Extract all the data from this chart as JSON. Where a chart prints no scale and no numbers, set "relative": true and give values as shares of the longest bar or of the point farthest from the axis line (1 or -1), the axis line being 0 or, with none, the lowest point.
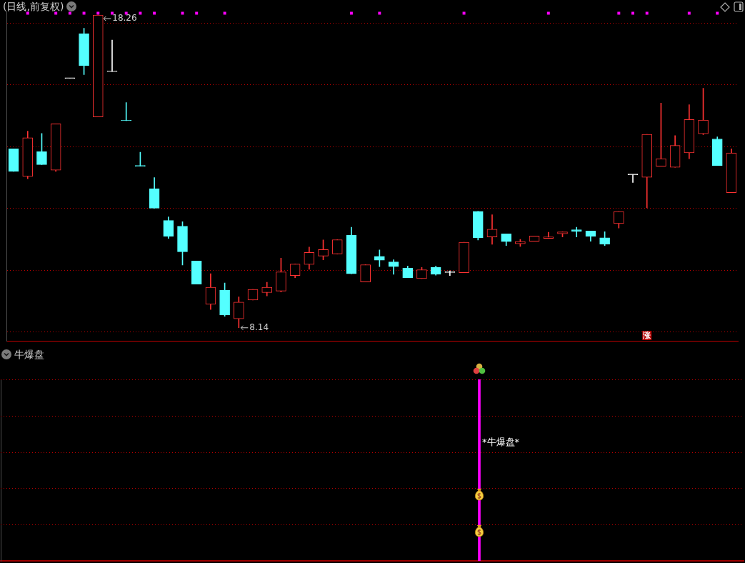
{
  "chart_data": [
    {
      "type": "candlestick",
      "title": "(日线,前复权)",
      "categories": [
        null,
        null,
        null,
        null,
        null,
        null,
        null,
        null,
        null,
        null,
        null,
        null,
        null,
        null,
        null,
        null,
        null,
        null,
        null,
        null,
        null,
        null,
        null,
        null,
        null,
        null,
        null,
        null,
        null,
        null,
        null,
        null,
        null,
        null,
        null,
        null,
        null,
        null,
        null,
        null,
        null,
        null,
        null,
        null,
        null,
        null,
        null,
        null,
        null,
        null,
        null,
        null
      ],
      "ohlc": [
        [
          13.93,
          13.93,
          13.2,
          13.2
        ],
        [
          13.04,
          14.5,
          12.96,
          14.29
        ],
        [
          13.84,
          14.43,
          13.42,
          13.42
        ],
        [
          13.24,
          14.74,
          13.2,
          14.74
        ],
        [
          16.21,
          16.21,
          16.21,
          16.21
        ],
        [
          17.66,
          17.83,
          16.33,
          16.62
        ],
        [
          14.96,
          18.26,
          14.96,
          18.26
        ],
        [
          16.43,
          17.45,
          16.43,
          16.43
        ],
        [
          14.84,
          15.43,
          14.84,
          14.84
        ],
        [
          13.37,
          13.82,
          13.37,
          13.37
        ],
        [
          12.64,
          13.0,
          12.01,
          12.01
        ],
        [
          11.61,
          11.73,
          11.03,
          11.1
        ],
        [
          11.43,
          11.57,
          10.17,
          10.6
        ],
        [
          10.3,
          10.3,
          9.55,
          9.55
        ],
        [
          8.9,
          9.89,
          8.73,
          9.45
        ],
        [
          9.36,
          9.59,
          8.51,
          8.55
        ],
        [
          8.43,
          9.14,
          8.14,
          8.97
        ],
        [
          9.04,
          9.38,
          9.04,
          9.38
        ],
        [
          9.28,
          9.61,
          9.17,
          9.45
        ],
        [
          9.33,
          10.39,
          9.3,
          9.95
        ],
        [
          9.83,
          10.2,
          9.76,
          10.2
        ],
        [
          10.19,
          10.75,
          10.03,
          10.58
        ],
        [
          10.46,
          10.98,
          10.34,
          10.67
        ],
        [
          10.53,
          10.99,
          10.53,
          10.99
        ],
        [
          11.14,
          11.39,
          9.89,
          9.89
        ],
        [
          9.62,
          10.18,
          9.62,
          10.18
        ],
        [
          10.45,
          10.66,
          10.12,
          10.33
        ],
        [
          10.27,
          10.34,
          9.87,
          10.12
        ],
        [
          10.07,
          10.14,
          9.76,
          9.76
        ],
        [
          9.73,
          10.09,
          9.73,
          10.02
        ],
        [
          10.09,
          10.14,
          9.84,
          9.87
        ],
        [
          9.93,
          9.98,
          9.83,
          9.93
        ],
        [
          9.92,
          10.91,
          9.92,
          10.91
        ],
        [
          11.91,
          11.91,
          10.98,
          11.05
        ],
        [
          11.08,
          11.8,
          10.84,
          11.33
        ],
        [
          11.18,
          11.18,
          10.8,
          10.93
        ],
        [
          10.86,
          11.0,
          10.77,
          10.93
        ],
        [
          10.94,
          11.11,
          10.94,
          11.11
        ],
        [
          11.03,
          11.23,
          11.03,
          11.08
        ],
        [
          11.18,
          11.24,
          11.08,
          11.24
        ],
        [
          11.31,
          11.39,
          11.08,
          11.26
        ],
        [
          11.27,
          11.27,
          10.94,
          11.1
        ],
        [
          11.05,
          11.25,
          10.8,
          10.85
        ],
        [
          11.51,
          11.9,
          11.37,
          11.9
        ],
        [
          13.09,
          13.09,
          12.84,
          13.09
        ],
        [
          13.01,
          14.4,
          12.02,
          14.4
        ],
        [
          13.37,
          15.41,
          13.37,
          13.61
        ],
        [
          13.33,
          14.36,
          13.33,
          14.04
        ],
        [
          13.8,
          15.36,
          13.61,
          14.88
        ],
        [
          14.42,
          15.89,
          14.39,
          14.86
        ],
        [
          14.25,
          14.32,
          13.39,
          13.39
        ],
        [
          12.51,
          13.93,
          12.51,
          13.8
        ]
      ],
      "colors": [
        "#54ffff",
        "#ff3232",
        "#54ffff",
        "#ff3232",
        "#ffffff",
        "#54ffff",
        "#ff3232",
        "#ffffff",
        "#54ffff",
        "#54ffff",
        "#54ffff",
        "#54ffff",
        "#54ffff",
        "#54ffff",
        "#ff3232",
        "#54ffff",
        "#ff3232",
        "#ff3232",
        "#ff3232",
        "#ff3232",
        "#ff3232",
        "#ff3232",
        "#ff3232",
        "#ff3232",
        "#54ffff",
        "#ff3232",
        "#54ffff",
        "#54ffff",
        "#54ffff",
        "#ff3232",
        "#54ffff",
        "#ffffff",
        "#ff3232",
        "#54ffff",
        "#ff3232",
        "#54ffff",
        "#ff3232",
        "#ff3232",
        "#ff3232",
        "#ff3232",
        "#54ffff",
        "#54ffff",
        "#54ffff",
        "#ff3232",
        "#ffffff",
        "#ff3232",
        "#ff3232",
        "#ff3232",
        "#ff3232",
        "#ff3232",
        "#54ffff",
        "#ff3232"
      ],
      "ylim": [
        7.7,
        18.4
      ],
      "yticks": [
        {
          "value": 8,
          "label": null
        },
        {
          "value": 10,
          "label": null
        },
        {
          "value": 12,
          "label": null
        },
        {
          "value": 14,
          "label": null
        },
        {
          "value": 16,
          "label": null
        },
        {
          "value": 18,
          "label": null
        }
      ],
      "grid": "y",
      "tick_labels": false,
      "series": [
        {
          "type": "scatter",
          "color": "#ff00ff",
          "marker": "square",
          "values": [
            null,
            18.32,
            null,
            18.32,
            18.32,
            18.32,
            18.32,
            18.32,
            18.32,
            18.32,
            18.32,
            null,
            18.32,
            18.32,
            null,
            18.32,
            null,
            null,
            null,
            null,
            null,
            null,
            null,
            null,
            18.32,
            null,
            18.32,
            null,
            null,
            null,
            null,
            null,
            18.32,
            null,
            null,
            null,
            null,
            null,
            18.32,
            null,
            null,
            null,
            null,
            18.32,
            18.32,
            18.32,
            null,
            null,
            18.32,
            null,
            18.32,
            null
          ]
        },
        {
          "type": "scatter",
          "color": "#b40000",
          "marker": "square",
          "values": [
            null,
            null,
            null,
            null,
            null,
            null,
            null,
            null,
            null,
            null,
            null,
            null,
            null,
            null,
            null,
            null,
            null,
            null,
            null,
            null,
            null,
            null,
            null,
            null,
            null,
            null,
            null,
            null,
            null,
            null,
            null,
            null,
            null,
            null,
            null,
            null,
            null,
            null,
            null,
            null,
            null,
            null,
            null,
            null,
            null,
            7.89,
            null,
            null,
            null,
            null,
            null,
            null
          ],
          "value_labels": [
            null,
            null,
            null,
            null,
            null,
            null,
            null,
            null,
            null,
            null,
            null,
            null,
            null,
            null,
            null,
            null,
            null,
            null,
            null,
            null,
            null,
            null,
            null,
            null,
            null,
            null,
            null,
            null,
            null,
            null,
            null,
            null,
            null,
            null,
            null,
            null,
            null,
            null,
            null,
            null,
            null,
            null,
            null,
            null,
            null,
            "涨",
            null,
            null,
            null,
            null,
            null,
            null
          ]
        }
      ],
      "annotations": [
        {
          "text": "18.26",
          "y": 18.26
        },
        "8.14"
      ]
    },
    {
      "type": "bar",
      "title": "牛爆盘",
      "categories": [
        null,
        null,
        null,
        null,
        null,
        null,
        null,
        null,
        null,
        null,
        null,
        null,
        null,
        null,
        null,
        null,
        null,
        null,
        null,
        null,
        null,
        null,
        null,
        null,
        null,
        null,
        null,
        null,
        null,
        null,
        null,
        null,
        null,
        null,
        null,
        null,
        null,
        null,
        null,
        null,
        null,
        null,
        null,
        null,
        null,
        null,
        null,
        null,
        null,
        null,
        null,
        null
      ],
      "values": [
        null,
        null,
        null,
        null,
        null,
        null,
        null,
        null,
        null,
        null,
        null,
        null,
        null,
        null,
        null,
        null,
        null,
        null,
        null,
        null,
        null,
        null,
        null,
        null,
        null,
        null,
        null,
        null,
        null,
        null,
        null,
        null,
        null,
        1,
        null,
        null,
        null,
        null,
        null,
        null,
        null,
        null,
        null,
        null,
        null,
        null,
        null,
        null,
        null,
        null,
        null,
        null
      ],
      "color": "#ff00ff",
      "relative": true,
      "tick_labels": false,
      "ref_lines": [
        {
          "axis": "y",
          "value": 0.2,
          "color": "#c00000",
          "line_style": "dotted"
        },
        {
          "axis": "y",
          "value": 0.4,
          "color": "#c00000",
          "line_style": "dotted"
        },
        {
          "axis": "y",
          "value": 0.6,
          "color": "#c00000",
          "line_style": "dotted"
        },
        {
          "axis": "y",
          "value": 0.8,
          "color": "#c00000",
          "line_style": "dotted"
        },
        {
          "axis": "y",
          "value": 1,
          "color": "#c00000",
          "line_style": "dotted"
        }
      ],
      "annotations": [
        "*牛爆盘*"
      ]
    }
  ]
}
